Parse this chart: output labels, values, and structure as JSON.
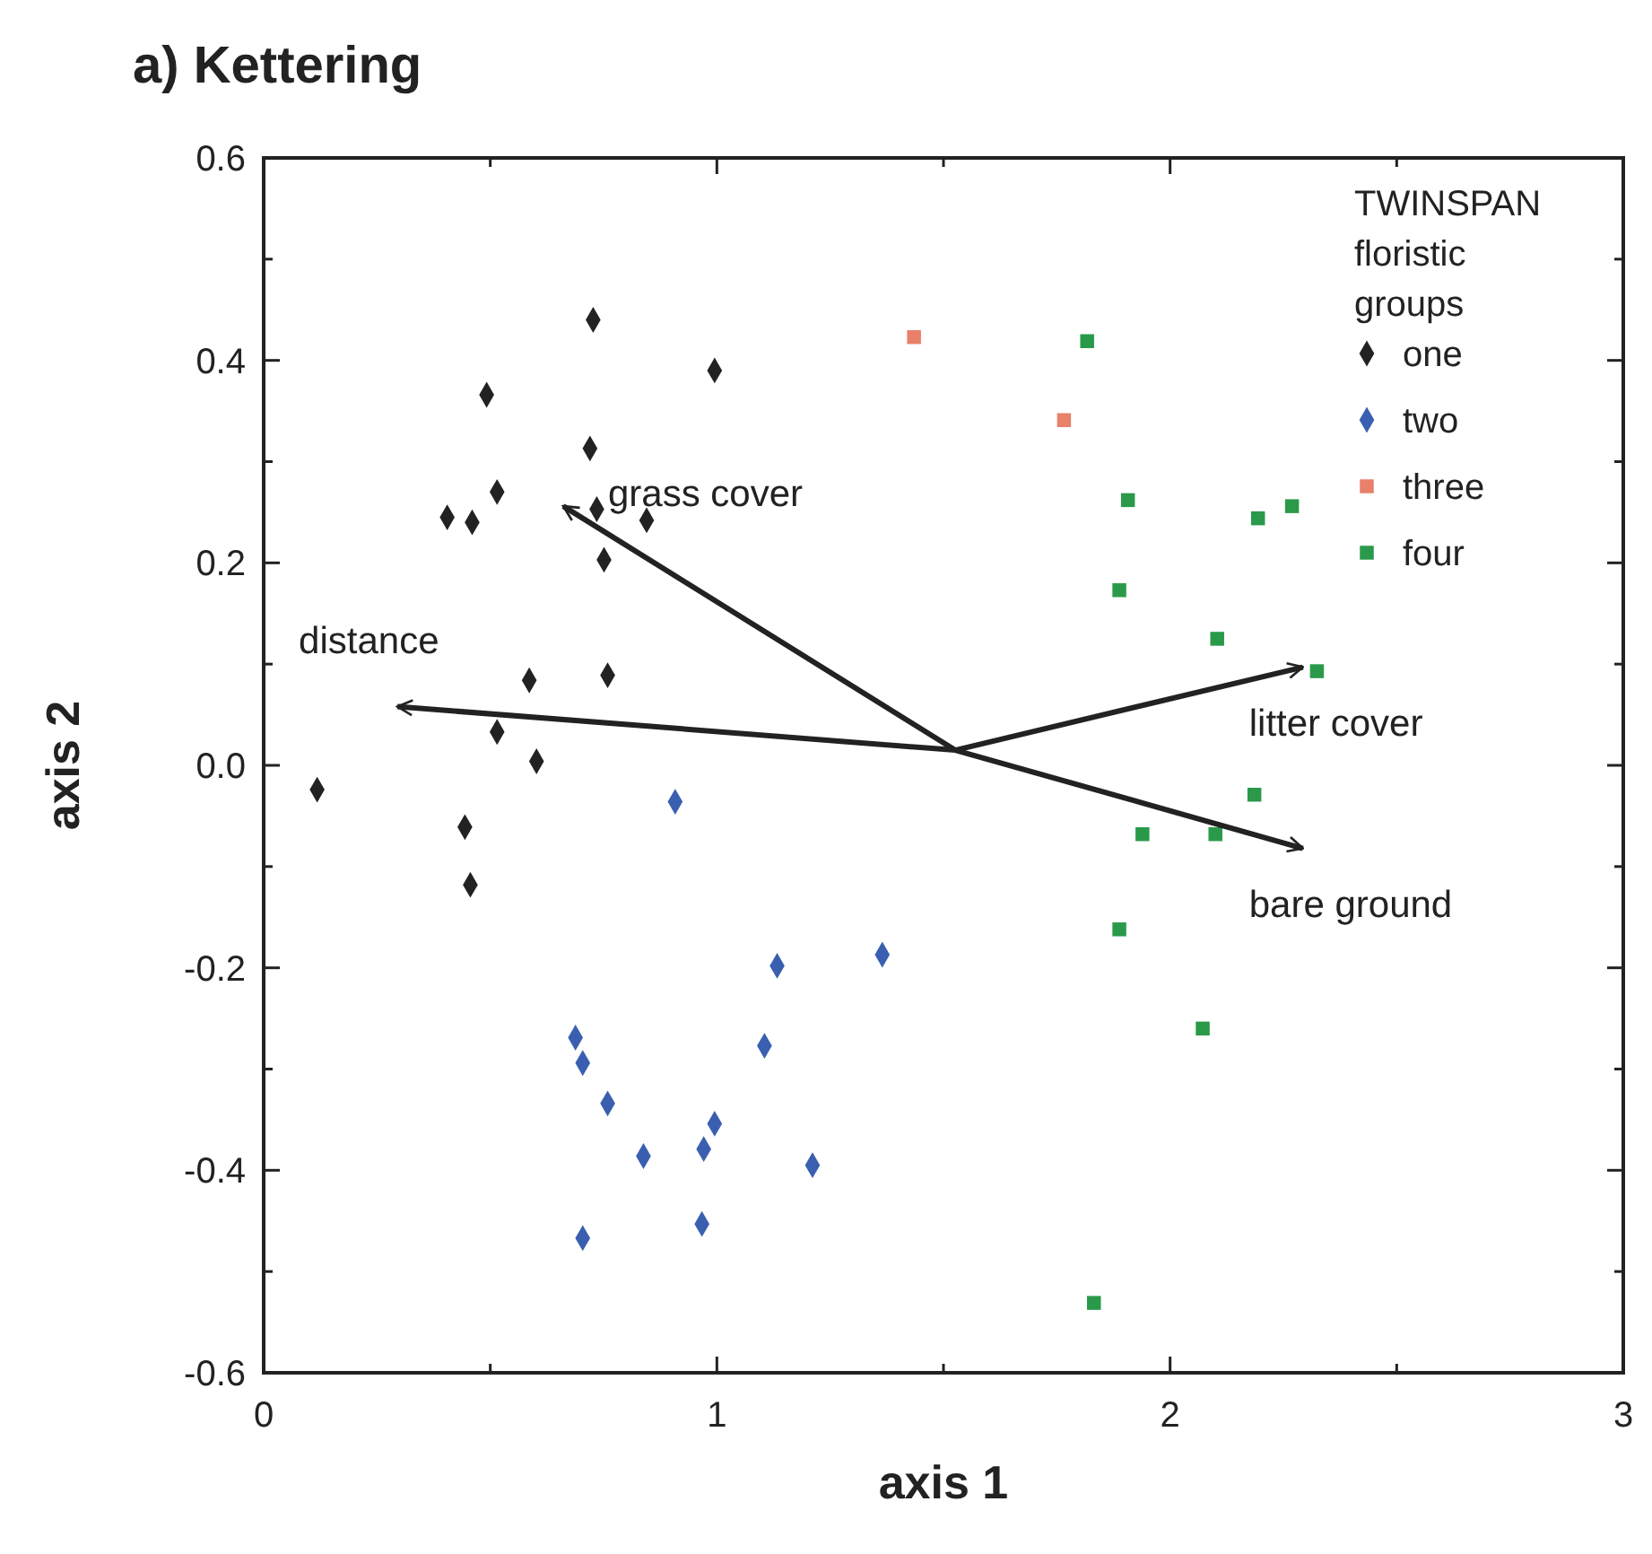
{
  "chart_data": {
    "type": "scatter",
    "title": "a)   Kettering",
    "xlabel": "axis  1",
    "ylabel": "axis  2",
    "legend_title": "TWINSPAN\nfloristic\ngroups",
    "legend": "top right",
    "xlim": [
      0,
      3
    ],
    "ylim": [
      -0.6,
      0.6
    ],
    "xticks": [
      0,
      {
        "value": 0.5,
        "label": null
      },
      1,
      {
        "value": 1.5,
        "label": null
      },
      2,
      {
        "value": 2.5,
        "label": null
      },
      3
    ],
    "yticks": [
      {
        "value": -0.6,
        "label": "-0.6"
      },
      {
        "value": -0.5,
        "label": null
      },
      {
        "value": -0.4,
        "label": "-0.4"
      },
      {
        "value": -0.3,
        "label": null
      },
      {
        "value": -0.2,
        "label": "-0.2"
      },
      {
        "value": -0.1,
        "label": null
      },
      {
        "value": 0,
        "label": "0.0"
      },
      {
        "value": 0.1,
        "label": null
      },
      {
        "value": 0.2,
        "label": "0.2"
      },
      {
        "value": 0.3,
        "label": null
      },
      {
        "value": 0.4,
        "label": "0.4"
      },
      {
        "value": 0.5,
        "label": null
      },
      {
        "value": 0.6,
        "label": "0.6"
      }
    ],
    "grid": false,
    "series": [
      {
        "name": "one",
        "color": "#222222",
        "marker": "diamond",
        "x": [
          0.727,
          0.995,
          0.492,
          0.72,
          0.515,
          0.405,
          0.46,
          0.735,
          0.845,
          0.751,
          0.759,
          0.586,
          0.515,
          0.602,
          0.118,
          0.444,
          0.456
        ],
        "values": [
          0.44,
          0.39,
          0.366,
          0.313,
          0.27,
          0.245,
          0.24,
          0.253,
          0.242,
          0.203,
          0.089,
          0.084,
          0.033,
          0.004,
          -0.024,
          -0.061,
          -0.118
        ]
      },
      {
        "name": "two",
        "color": "#3a5fb0",
        "marker": "diamond",
        "x": [
          0.908,
          1.365,
          1.133,
          0.688,
          0.704,
          0.759,
          1.105,
          0.838,
          0.971,
          0.995,
          1.211,
          0.704,
          0.967
        ],
        "values": [
          -0.036,
          -0.187,
          -0.198,
          -0.269,
          -0.294,
          -0.334,
          -0.277,
          -0.386,
          -0.379,
          -0.354,
          -0.395,
          -0.467,
          -0.453
        ]
      },
      {
        "name": "three",
        "color": "#e8806a",
        "marker": "square",
        "x": [
          1.435,
          1.766
        ],
        "values": [
          0.423,
          0.341
        ]
      },
      {
        "name": "four",
        "color": "#2a9a4a",
        "marker": "square",
        "x": [
          1.817,
          1.907,
          1.888,
          2.104,
          2.194,
          2.269,
          2.324,
          2.186,
          1.939,
          2.1,
          1.888,
          2.072,
          1.832
        ],
        "values": [
          0.419,
          0.262,
          0.173,
          0.125,
          0.244,
          0.256,
          0.093,
          -0.029,
          -0.068,
          -0.068,
          -0.162,
          -0.26,
          -0.531
        ]
      },
      {
        "type": "line",
        "name": "grass cover",
        "color": "#222222",
        "line_style": "solid",
        "x": [
          1.526,
          0.661
        ],
        "values": [
          0.015,
          0.256
        ]
      },
      {
        "type": "line",
        "name": "distance",
        "color": "#222222",
        "line_style": "solid",
        "x": [
          1.526,
          0.295
        ],
        "values": [
          0.015,
          0.058
        ]
      },
      {
        "type": "line",
        "name": "litter  cover",
        "color": "#222222",
        "line_style": "solid",
        "x": [
          1.526,
          2.293
        ],
        "values": [
          0.015,
          0.097
        ]
      },
      {
        "type": "line",
        "name": "bare ground",
        "color": "#222222",
        "line_style": "solid",
        "x": [
          1.526,
          2.293
        ],
        "values": [
          0.015,
          -0.082
        ]
      }
    ]
  }
}
